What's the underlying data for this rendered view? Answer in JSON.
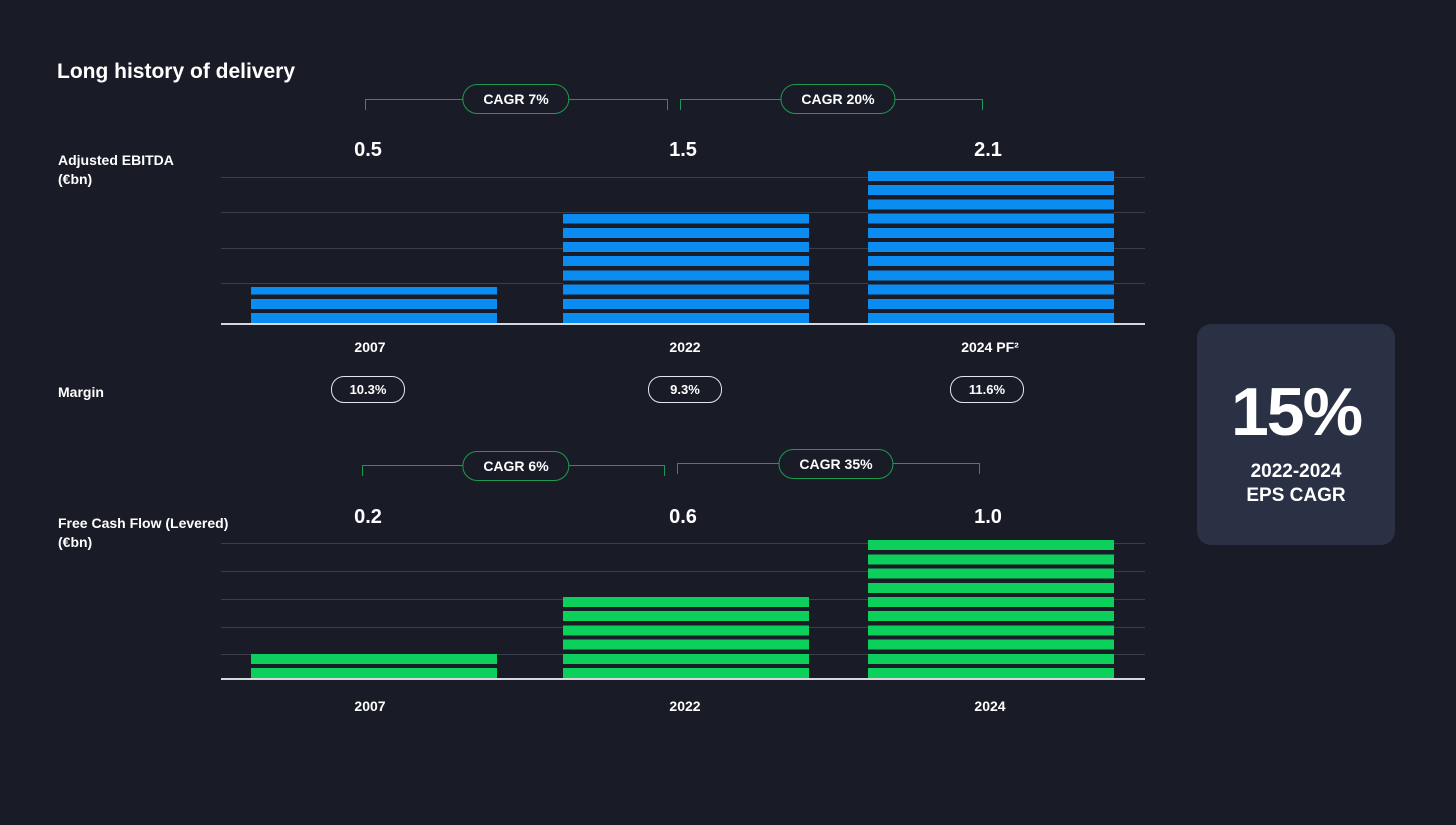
{
  "title": "Long history of delivery",
  "colors": {
    "ebitda": "#0a8cf0",
    "fcf": "#0ccf5c",
    "background": "#191c27",
    "card": "#2b3145",
    "cagr_border": "#1e9a4e"
  },
  "chart_data": [
    {
      "type": "bar",
      "label": [
        "Adjusted EBITDA",
        "(€bn)"
      ],
      "categories": [
        "2007",
        "2022",
        "2024 PF²"
      ],
      "values": [
        0.5,
        1.5,
        2.1
      ],
      "value_labels": [
        "0.5",
        "1.5",
        "2.1"
      ],
      "cagr": [
        "CAGR 7%",
        "CAGR 20%"
      ],
      "ylim": [
        0,
        2.1
      ]
    },
    {
      "type": "bar",
      "label": [
        "Free Cash Flow (Levered)",
        "(€bn)"
      ],
      "categories": [
        "2007",
        "2022",
        "2024"
      ],
      "values": [
        0.2,
        0.6,
        1.0
      ],
      "value_labels": [
        "0.2",
        "0.6",
        "1.0"
      ],
      "cagr": [
        "CAGR 6%",
        "CAGR 35%"
      ],
      "ylim": [
        0,
        1.0
      ]
    }
  ],
  "margin": {
    "label": "Margin",
    "values": [
      "10.3%",
      "9.3%",
      "11.6%"
    ]
  },
  "eps_card": {
    "value": "15%",
    "line1": "2022-2024",
    "line2": "EPS CAGR"
  }
}
